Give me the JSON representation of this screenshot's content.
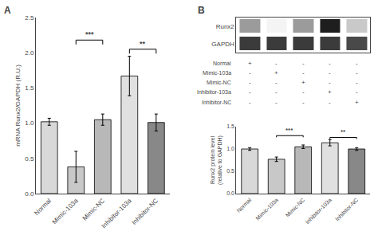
{
  "chart_data": [
    {
      "type": "bar",
      "title": "A",
      "categories": [
        "Normal",
        "Mimic-103a",
        "Mimic-NC",
        "Inhibitor-103a",
        "Inhibitor-NC"
      ],
      "values": [
        1.02,
        0.38,
        1.05,
        1.67,
        1.01
      ],
      "errors": [
        0.05,
        0.22,
        0.08,
        0.28,
        0.12
      ],
      "colors": [
        "#d8d8d8",
        "#c8c8c8",
        "#b8b8b8",
        "#e0e0e0",
        "#888888"
      ],
      "ylabel": "mRNA Runx2/GAPDH (R.U.)",
      "ylim": [
        0,
        2.5
      ],
      "yticks": [
        {
          "value": 0,
          "label": "0.0"
        },
        0.5,
        {
          "value": 1,
          "label": "1.0"
        },
        1.5,
        {
          "value": 2,
          "label": "2.0"
        },
        2.5
      ],
      "grid": false,
      "annotations": [
        {
          "x1": 1,
          "x2": 2,
          "y": 2.18,
          "label": "***"
        },
        {
          "x1": 3,
          "x2": 4,
          "y": 2.05,
          "label": "**"
        }
      ]
    },
    {
      "type": "heatmap",
      "title": "B",
      "categories": [
        "Runx2",
        "GAPDH"
      ],
      "cells": [
        [
          0.45,
          0.2,
          0.45,
          0.8,
          0.32
        ],
        [
          0.72,
          0.72,
          0.72,
          0.72,
          0.68
        ]
      ],
      "tick_labels": "y",
      "annotations": [
        {
          "label": "Normal",
          "marks": [
            "+",
            "-",
            "-",
            "-",
            "-"
          ]
        },
        {
          "label": "Mimic-103a",
          "marks": [
            "-",
            "+",
            "-",
            "-",
            "-"
          ]
        },
        {
          "label": "Mimic-NC",
          "marks": [
            "-",
            "-",
            "+",
            "-",
            "-"
          ]
        },
        {
          "label": "Inhibitor-103a",
          "marks": [
            "-",
            "-",
            "-",
            "+",
            "-"
          ]
        },
        {
          "label": "Inhibitor-NC",
          "marks": [
            "-",
            "-",
            "-",
            "-",
            "+"
          ]
        }
      ]
    },
    {
      "type": "bar",
      "categories": [
        "Normal",
        "Mimic-103a",
        "Mimic-NC",
        "Inhibitor-103a",
        "Inhibitor-NC"
      ],
      "values": [
        1.0,
        0.77,
        1.05,
        1.14,
        1.0
      ],
      "errors": [
        0.03,
        0.05,
        0.04,
        0.07,
        0.03
      ],
      "colors": [
        "#d8d8d8",
        "#c8c8c8",
        "#b8b8b8",
        "#e0e0e0",
        "#888888"
      ],
      "ylabel": "Runx2 protein level\n(relative to GAPDH)",
      "ylim": [
        0,
        1.5
      ],
      "yticks": [
        {
          "value": 0,
          "label": "0.0"
        },
        0.5,
        {
          "value": 1,
          "label": "1.0"
        },
        1.5
      ],
      "grid": false,
      "annotations": [
        {
          "x1": 1,
          "x2": 2,
          "y": 1.3,
          "label": "***"
        },
        {
          "x1": 3,
          "x2": 4,
          "y": 1.26,
          "label": "**"
        }
      ]
    }
  ]
}
